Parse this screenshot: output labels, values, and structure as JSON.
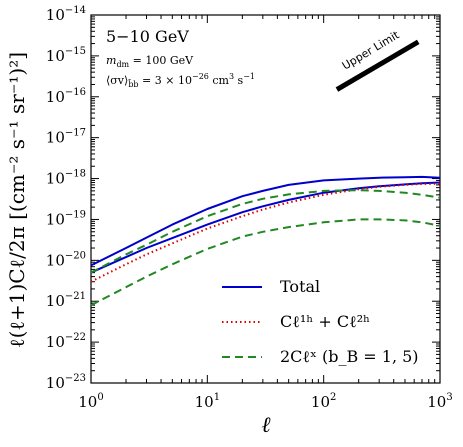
{
  "chart_data": {
    "type": "line",
    "energy_band": "5−10 GeV",
    "annotations": {
      "mass": "m",
      "mass_sub": "dm",
      "mass_value": " = 100 GeV",
      "cross_section": "⟨σv⟩",
      "cross_section_sub": "b̄b",
      "cross_section_value": " = 3 × 10",
      "cross_section_exp": "−26",
      "cross_section_unit": " cm",
      "cross_section_unit_exp": "3",
      "cross_section_unit_s": " s",
      "cross_section_unit_s_exp": "−1"
    },
    "upper_limit_label": "Upper Limit",
    "xlabel": "ℓ",
    "ylabel": "ℓ(ℓ+1)Cℓ/2π [(cm⁻² s⁻¹ sr⁻¹)²]",
    "xscale": "log",
    "yscale": "log",
    "xlim": [
      1,
      1000
    ],
    "ylim": [
      1e-23,
      1e-14
    ],
    "x_ticks": [
      {
        "base": "10",
        "exp": "0"
      },
      {
        "base": "10",
        "exp": "1"
      },
      {
        "base": "10",
        "exp": "2"
      },
      {
        "base": "10",
        "exp": "3"
      }
    ],
    "y_ticks": [
      {
        "base": "10",
        "exp": "−23"
      },
      {
        "base": "10",
        "exp": "−22"
      },
      {
        "base": "10",
        "exp": "−21"
      },
      {
        "base": "10",
        "exp": "−20"
      },
      {
        "base": "10",
        "exp": "−19"
      },
      {
        "base": "10",
        "exp": "−18"
      },
      {
        "base": "10",
        "exp": "−17"
      },
      {
        "base": "10",
        "exp": "−16"
      },
      {
        "base": "10",
        "exp": "−15"
      },
      {
        "base": "10",
        "exp": "−14"
      }
    ],
    "legend_position": "lower-center",
    "legend": [
      {
        "label": "Total",
        "color": "#0000cc",
        "style": "solid"
      },
      {
        "label": "Cℓ¹ʰ + Cℓ²ʰ",
        "color": "#dd0000",
        "style": "dotted"
      },
      {
        "label": "2Cℓˣ (b_B = 1, 5)",
        "color": "#228822",
        "style": "dashed"
      }
    ],
    "series": [
      {
        "group": "Total",
        "color": "#0000cc",
        "style": "solid",
        "x": [
          1,
          2,
          3,
          5,
          10,
          20,
          30,
          50,
          100,
          200,
          300,
          500,
          700,
          1000
        ],
        "y": [
          7.5e-21,
          2e-20,
          3.6e-20,
          7.5e-20,
          1.8e-19,
          3.7e-19,
          5e-19,
          7e-19,
          9e-19,
          1e-18,
          1.05e-18,
          1.08e-18,
          1.1e-18,
          1.05e-18
        ]
      },
      {
        "group": "Total",
        "color": "#0000cc",
        "style": "solid",
        "x": [
          1,
          2,
          3,
          5,
          10,
          20,
          30,
          50,
          100,
          200,
          300,
          500,
          700,
          1000
        ],
        "y": [
          5e-21,
          1.2e-20,
          2e-20,
          3.5e-20,
          7.5e-20,
          1.5e-19,
          2.1e-19,
          3e-19,
          4.5e-19,
          5.8e-19,
          6.5e-19,
          7.2e-19,
          7.7e-19,
          8e-19
        ]
      },
      {
        "group": "Cℓ¹ʰ + Cℓ²ʰ",
        "color": "#dd0000",
        "style": "dotted",
        "x": [
          1,
          2,
          3,
          5,
          10,
          20,
          30,
          50,
          100,
          200,
          300,
          500,
          700,
          1000
        ],
        "y": [
          3e-21,
          8e-21,
          1.4e-20,
          2.6e-20,
          6e-20,
          1.2e-19,
          1.75e-19,
          2.6e-19,
          4e-19,
          5.5e-19,
          6.3e-19,
          7e-19,
          7.4e-19,
          7.5e-19
        ]
      },
      {
        "group": "2Cℓˣ",
        "color": "#228822",
        "style": "dashed",
        "x": [
          1,
          2,
          3,
          5,
          10,
          20,
          30,
          50,
          100,
          200,
          300,
          500,
          700,
          1000
        ],
        "y": [
          5e-21,
          1.4e-20,
          2.4e-20,
          5e-20,
          1.2e-19,
          2.4e-19,
          3.2e-19,
          4.1e-19,
          5e-19,
          5.2e-19,
          5e-19,
          4.5e-19,
          4e-19,
          3.4e-19
        ]
      },
      {
        "group": "2Cℓˣ",
        "color": "#228822",
        "style": "dashed",
        "x": [
          1,
          2,
          3,
          5,
          10,
          20,
          30,
          50,
          100,
          200,
          300,
          500,
          700,
          1000
        ],
        "y": [
          8e-22,
          2.2e-21,
          4e-21,
          8e-21,
          1.9e-20,
          3.8e-20,
          5e-20,
          6.5e-20,
          8.5e-20,
          1e-19,
          1e-19,
          9.5e-20,
          8.5e-20,
          7e-20
        ]
      }
    ],
    "upper_limit_segment": {
      "x": [
        130,
        650
      ],
      "y": [
        1.5e-16,
        2.2e-15
      ]
    }
  }
}
